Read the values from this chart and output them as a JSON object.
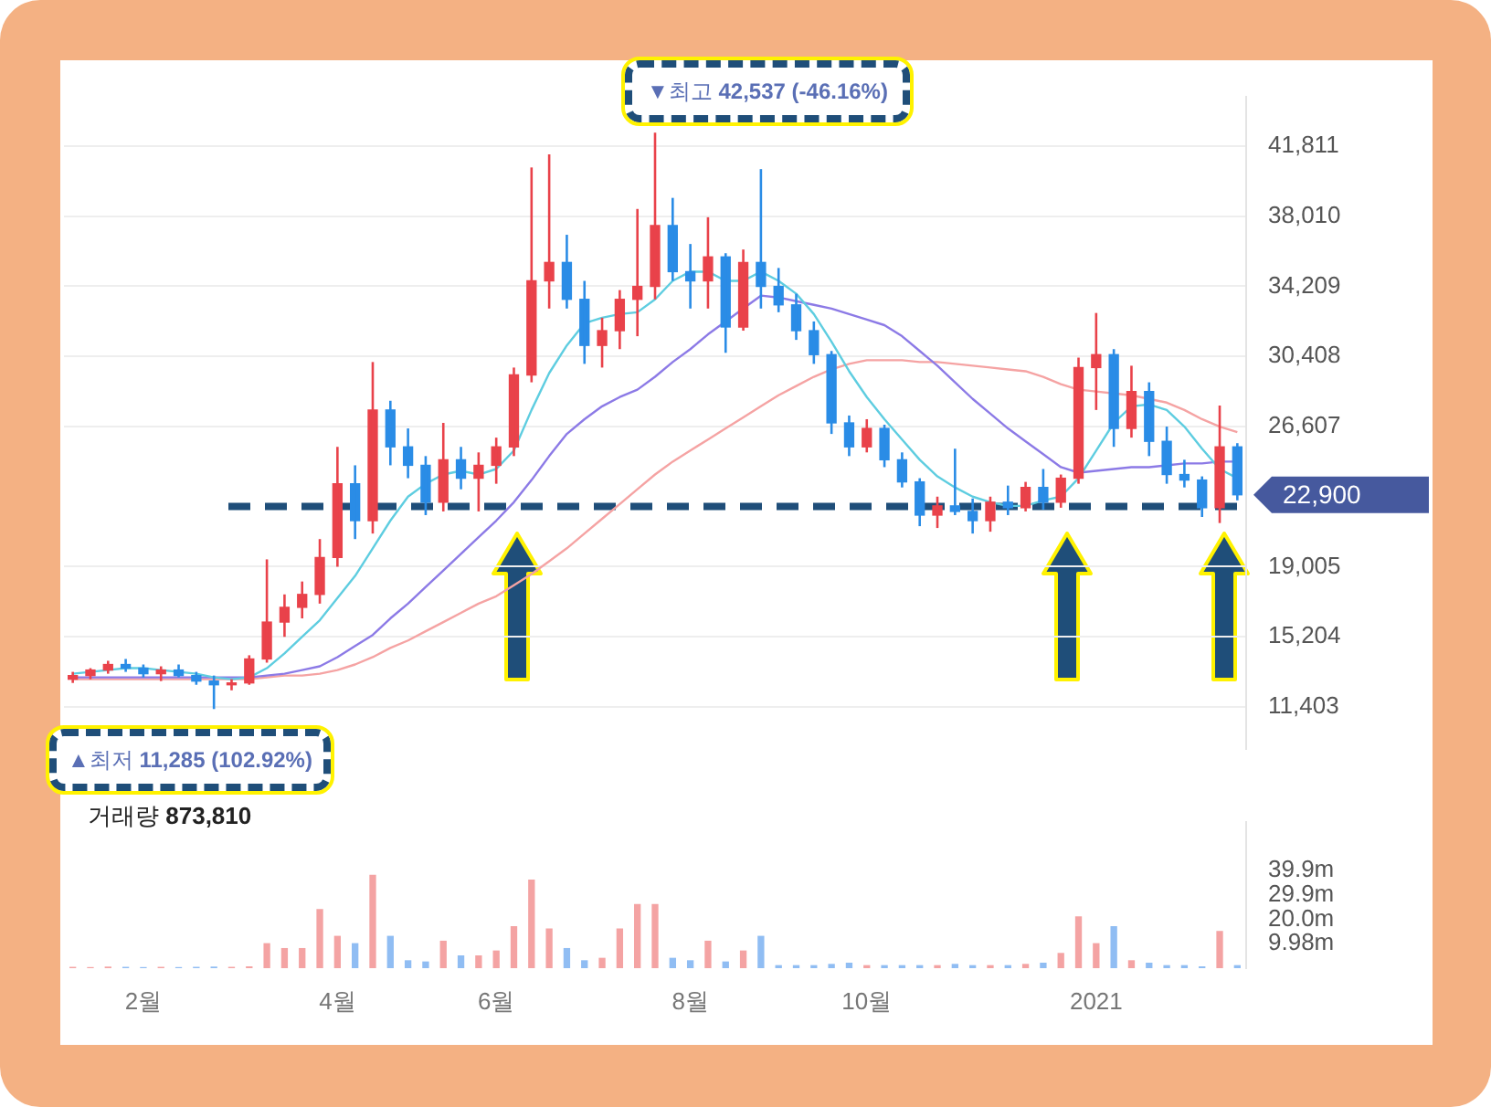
{
  "chart_data": [
    {
      "type": "candlestick",
      "categories": [
        null,
        null,
        null,
        null,
        null,
        null,
        null,
        null,
        null,
        null,
        null,
        null,
        null,
        null,
        null,
        null,
        null,
        null,
        null,
        null,
        null,
        null,
        null,
        null,
        null,
        null,
        null,
        null,
        null,
        null,
        null,
        null,
        null,
        null,
        null,
        null,
        null,
        null,
        null,
        null,
        null,
        null,
        null,
        null,
        null,
        null,
        null,
        null,
        null,
        null,
        null,
        null,
        null,
        null,
        null,
        null,
        null,
        null,
        null,
        null,
        null,
        null,
        null,
        null,
        null,
        null,
        null
      ],
      "ohlc": [
        [
          12900,
          13300,
          12700,
          13100
        ],
        [
          13100,
          13500,
          12900,
          13400
        ],
        [
          13400,
          13900,
          13200,
          13700
        ],
        [
          13700,
          14000,
          13300,
          13500
        ],
        [
          13500,
          13700,
          13000,
          13200
        ],
        [
          13200,
          13600,
          12800,
          13400
        ],
        [
          13400,
          13700,
          13000,
          13100
        ],
        [
          13100,
          13300,
          12600,
          12800
        ],
        [
          12800,
          13100,
          11285,
          12600
        ],
        [
          12600,
          12900,
          12300,
          12700
        ],
        [
          12700,
          14200,
          12600,
          14000
        ],
        [
          14000,
          19400,
          13800,
          16000
        ],
        [
          16000,
          17500,
          15200,
          16800
        ],
        [
          16800,
          18200,
          16200,
          17500
        ],
        [
          17500,
          20500,
          17000,
          19500
        ],
        [
          19500,
          25500,
          19000,
          23500
        ],
        [
          23500,
          24500,
          20500,
          21500
        ],
        [
          21500,
          30100,
          20800,
          27500
        ],
        [
          27500,
          28000,
          24500,
          25500
        ],
        [
          25500,
          26500,
          23800,
          24500
        ],
        [
          24500,
          25000,
          21800,
          22500
        ],
        [
          22500,
          26800,
          22000,
          24800
        ],
        [
          24800,
          25500,
          23200,
          23800
        ],
        [
          23800,
          25200,
          22000,
          24500
        ],
        [
          24500,
          26000,
          23500,
          25500
        ],
        [
          25500,
          29800,
          25000,
          29400
        ],
        [
          29400,
          40650,
          29000,
          34500
        ],
        [
          34500,
          41360,
          33000,
          35500
        ],
        [
          35500,
          37000,
          33000,
          33500
        ],
        [
          33500,
          34500,
          30000,
          31000
        ],
        [
          31000,
          32500,
          29800,
          31800
        ],
        [
          31800,
          34000,
          30800,
          33500
        ],
        [
          33500,
          38400,
          31500,
          34200
        ],
        [
          34200,
          42537,
          33500,
          37500
        ],
        [
          37500,
          39000,
          34500,
          35000
        ],
        [
          35000,
          36500,
          33000,
          34500
        ],
        [
          34500,
          37950,
          33000,
          35800
        ],
        [
          35800,
          36000,
          30600,
          32000
        ],
        [
          32000,
          36200,
          31800,
          35500
        ],
        [
          35500,
          40560,
          33000,
          34200
        ],
        [
          34200,
          35200,
          32800,
          33200
        ],
        [
          33200,
          33800,
          31300,
          31800
        ],
        [
          31800,
          32300,
          30000,
          30500
        ],
        [
          30500,
          30700,
          26200,
          26800
        ],
        [
          26800,
          27200,
          25000,
          25500
        ],
        [
          25500,
          27000,
          25200,
          26500
        ],
        [
          26500,
          26700,
          24400,
          24800
        ],
        [
          24800,
          25200,
          23300,
          23600
        ],
        [
          23600,
          23800,
          21200,
          21800
        ],
        [
          21800,
          22800,
          21100,
          22300
        ],
        [
          22300,
          25400,
          21800,
          22000
        ],
        [
          22000,
          22700,
          20800,
          21500
        ],
        [
          21500,
          22800,
          20900,
          22500
        ],
        [
          22500,
          23400,
          21800,
          22200
        ],
        [
          22200,
          23600,
          22000,
          23300
        ],
        [
          23300,
          24300,
          22100,
          22500
        ],
        [
          22500,
          24000,
          22200,
          23800
        ],
        [
          23800,
          30340,
          23500,
          29800
        ],
        [
          29800,
          32760,
          27500,
          30500
        ],
        [
          30500,
          30800,
          25500,
          26500
        ],
        [
          26500,
          29900,
          26000,
          28500
        ],
        [
          28500,
          29000,
          25000,
          25800
        ],
        [
          25800,
          26600,
          23500,
          24000
        ],
        [
          24000,
          24800,
          23300,
          23700
        ],
        [
          23700,
          23900,
          21700,
          22200
        ],
        [
          22200,
          27740,
          21370,
          25500
        ],
        [
          25500,
          25700,
          22600,
          22900
        ]
      ],
      "colors": [
        "#e9424a",
        "#e9424a",
        "#e9424a",
        "#2a8ce6",
        "#2a8ce6",
        "#e9424a",
        "#2a8ce6",
        "#2a8ce6",
        "#2a8ce6",
        "#e9424a",
        "#e9424a",
        "#e9424a",
        "#e9424a",
        "#e9424a",
        "#e9424a",
        "#e9424a",
        "#2a8ce6",
        "#e9424a",
        "#2a8ce6",
        "#2a8ce6",
        "#2a8ce6",
        "#e9424a",
        "#2a8ce6",
        "#e9424a",
        "#e9424a",
        "#e9424a",
        "#e9424a",
        "#e9424a",
        "#2a8ce6",
        "#2a8ce6",
        "#e9424a",
        "#e9424a",
        "#e9424a",
        "#e9424a",
        "#2a8ce6",
        "#2a8ce6",
        "#e9424a",
        "#2a8ce6",
        "#e9424a",
        "#2a8ce6",
        "#2a8ce6",
        "#2a8ce6",
        "#2a8ce6",
        "#2a8ce6",
        "#2a8ce6",
        "#e9424a",
        "#2a8ce6",
        "#2a8ce6",
        "#2a8ce6",
        "#e9424a",
        "#2a8ce6",
        "#2a8ce6",
        "#e9424a",
        "#2a8ce6",
        "#e9424a",
        "#2a8ce6",
        "#e9424a",
        "#e9424a",
        "#e9424a",
        "#2a8ce6",
        "#e9424a",
        "#2a8ce6",
        "#2a8ce6",
        "#2a8ce6",
        "#2a8ce6",
        "#e9424a",
        "#2a8ce6"
      ],
      "series": [
        {
          "type": "line",
          "color": "#5ecde0",
          "values": [
            13200,
            13300,
            13400,
            13500,
            13500,
            13400,
            13300,
            13200,
            13000,
            12900,
            13000,
            13500,
            14300,
            15200,
            16100,
            17300,
            18500,
            20000,
            21500,
            22800,
            23500,
            24000,
            24200,
            24000,
            24300,
            25300,
            27500,
            29500,
            31000,
            32200,
            32500,
            32700,
            32800,
            33500,
            34500,
            35000,
            35000,
            34500,
            34500,
            35000,
            34500,
            33800,
            32700,
            31200,
            29600,
            28200,
            27000,
            25900,
            24800,
            23900,
            23300,
            22800,
            22500,
            22300,
            22300,
            22600,
            22800,
            23800,
            25300,
            26800,
            27700,
            27800,
            27500,
            26600,
            25400,
            24300,
            23800
          ]
        },
        {
          "type": "line",
          "color": "#8c7ae6",
          "values": [
            13000,
            13000,
            13000,
            13000,
            13000,
            13000,
            13000,
            13000,
            13000,
            13000,
            13000,
            13100,
            13200,
            13400,
            13600,
            14100,
            14700,
            15300,
            16200,
            17000,
            17900,
            18800,
            19700,
            20600,
            21500,
            22500,
            23700,
            25000,
            26200,
            27000,
            27700,
            28200,
            28600,
            29300,
            30100,
            30800,
            31600,
            32300,
            33000,
            33700,
            33600,
            33400,
            33200,
            33000,
            32700,
            32400,
            32100,
            31500,
            30700,
            29900,
            29000,
            28100,
            27300,
            26500,
            25800,
            25100,
            24400,
            24100,
            24200,
            24300,
            24400,
            24400,
            24500,
            24600,
            24600,
            24700,
            24700
          ]
        },
        {
          "type": "line",
          "color": "#f5a3a3",
          "values": [
            12900,
            12900,
            12900,
            12900,
            12900,
            12900,
            12900,
            12900,
            12900,
            12900,
            12900,
            13000,
            13100,
            13100,
            13200,
            13400,
            13700,
            14100,
            14600,
            15000,
            15500,
            16000,
            16500,
            17000,
            17400,
            18000,
            18600,
            19300,
            20000,
            20800,
            21600,
            22400,
            23200,
            24000,
            24700,
            25300,
            25900,
            26500,
            27100,
            27700,
            28300,
            28800,
            29300,
            29700,
            30000,
            30200,
            30200,
            30200,
            30100,
            30100,
            30000,
            29900,
            29800,
            29700,
            29600,
            29300,
            28900,
            28600,
            28500,
            28400,
            28300,
            28100,
            27900,
            27500,
            27000,
            26600,
            26300
          ]
        }
      ],
      "ylim": [
        9100,
        44500
      ],
      "yticks": [
        {
          "value": 11403,
          "label": "11,403"
        },
        {
          "value": 15204,
          "label": "15,204"
        },
        {
          "value": 19005,
          "label": "19,005"
        },
        {
          "value": 26607,
          "label": "26,607"
        },
        {
          "value": 30408,
          "label": "30,408"
        },
        {
          "value": 34209,
          "label": "34,209"
        },
        {
          "value": 38010,
          "label": "38,010"
        },
        {
          "value": 41811,
          "label": "41,811"
        }
      ],
      "grid": "y",
      "tick_labels": "y",
      "ref_lines": [
        {
          "axis": "y",
          "value": 22270,
          "color": "#1f4e79",
          "line_style": "dashed"
        }
      ],
      "annotations": [
        "▼최고 42,537 (-46.16%)",
        "▲최저 11,285 (102.92%)",
        "22,900"
      ]
    },
    {
      "type": "bar",
      "title": "거래량 873,810",
      "categories": [
        null,
        null,
        null,
        null,
        "2월",
        null,
        null,
        null,
        null,
        null,
        null,
        null,
        null,
        null,
        null,
        "4월",
        null,
        null,
        null,
        null,
        null,
        null,
        null,
        null,
        "6월",
        null,
        null,
        null,
        null,
        null,
        null,
        null,
        null,
        null,
        null,
        "8월",
        null,
        null,
        null,
        null,
        null,
        null,
        null,
        null,
        null,
        "10월",
        null,
        null,
        null,
        null,
        null,
        null,
        null,
        null,
        null,
        null,
        null,
        null,
        "2021",
        null,
        null,
        null,
        null,
        null,
        null,
        null,
        null
      ],
      "values": [
        0.3,
        0.2,
        0.4,
        0.3,
        0.2,
        0.3,
        0.2,
        0.3,
        0.4,
        0.3,
        0.5,
        10,
        8,
        8,
        24,
        13,
        10,
        38,
        13,
        3,
        2.5,
        11,
        5,
        5,
        7,
        17,
        36,
        16,
        8,
        3,
        4,
        16,
        26,
        26,
        4,
        3,
        11,
        2.5,
        7,
        13,
        1,
        1,
        1,
        1.5,
        2,
        1,
        1,
        1,
        1,
        1,
        1.5,
        1,
        1,
        1,
        1.5,
        2,
        6,
        21,
        10,
        17,
        3,
        2,
        1,
        1,
        0.5,
        15,
        1
      ],
      "colors": [
        "#f4a3a3",
        "#f4a3a3",
        "#f4a3a3",
        "#90bdf3",
        "#90bdf3",
        "#f4a3a3",
        "#90bdf3",
        "#90bdf3",
        "#90bdf3",
        "#f4a3a3",
        "#f4a3a3",
        "#f4a3a3",
        "#f4a3a3",
        "#f4a3a3",
        "#f4a3a3",
        "#f4a3a3",
        "#90bdf3",
        "#f4a3a3",
        "#90bdf3",
        "#90bdf3",
        "#90bdf3",
        "#f4a3a3",
        "#90bdf3",
        "#f4a3a3",
        "#f4a3a3",
        "#f4a3a3",
        "#f4a3a3",
        "#f4a3a3",
        "#90bdf3",
        "#90bdf3",
        "#f4a3a3",
        "#f4a3a3",
        "#f4a3a3",
        "#f4a3a3",
        "#90bdf3",
        "#90bdf3",
        "#f4a3a3",
        "#90bdf3",
        "#f4a3a3",
        "#90bdf3",
        "#90bdf3",
        "#90bdf3",
        "#90bdf3",
        "#90bdf3",
        "#90bdf3",
        "#f4a3a3",
        "#90bdf3",
        "#90bdf3",
        "#90bdf3",
        "#f4a3a3",
        "#90bdf3",
        "#90bdf3",
        "#f4a3a3",
        "#90bdf3",
        "#f4a3a3",
        "#90bdf3",
        "#f4a3a3",
        "#f4a3a3",
        "#f4a3a3",
        "#90bdf3",
        "#f4a3a3",
        "#90bdf3",
        "#90bdf3",
        "#90bdf3",
        "#90bdf3",
        "#f4a3a3",
        "#90bdf3"
      ],
      "ylim": [
        0,
        60
      ],
      "yticks": [
        {
          "value": 9.98,
          "label": "9.98m"
        },
        {
          "value": 20.0,
          "label": "20.0m"
        },
        {
          "value": 29.9,
          "label": "29.9m"
        },
        {
          "value": 39.9,
          "label": "39.9m"
        }
      ]
    }
  ]
}
